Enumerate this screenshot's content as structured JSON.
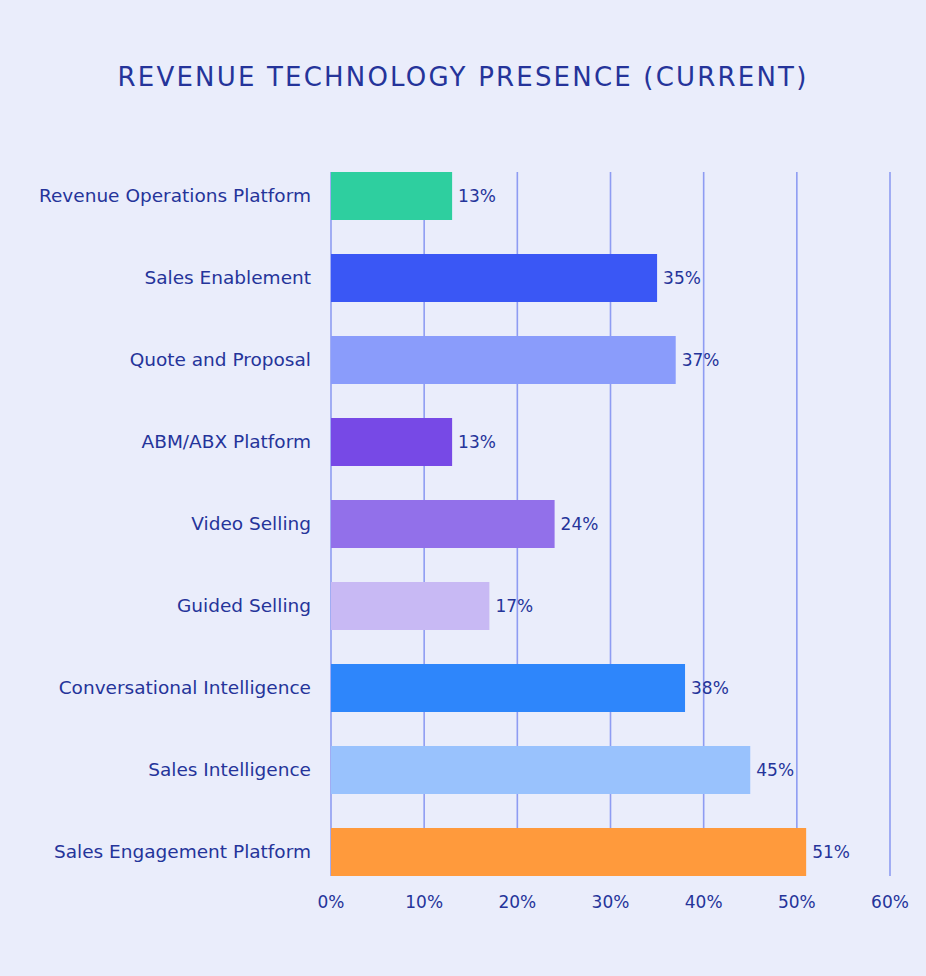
{
  "chart_data": {
    "type": "bar",
    "title": "REVENUE TECHNOLOGY PRESENCE (CURRENT)",
    "orientation": "horizontal",
    "categories": [
      "Revenue Operations Platform",
      "Sales Enablement",
      "Quote and Proposal",
      "ABM/ABX Platform",
      "Video Selling",
      "Guided Selling",
      "Conversational Intelligence",
      "Sales Intelligence",
      "Sales Engagement Platform"
    ],
    "values": [
      13,
      35,
      37,
      13,
      24,
      17,
      38,
      45,
      51
    ],
    "value_labels": [
      "13%",
      "35%",
      "37%",
      "13%",
      "24%",
      "17%",
      "38%",
      "45%",
      "51%"
    ],
    "colors": [
      "#2ecf9f",
      "#3a57f5",
      "#8a9cfb",
      "#7749e6",
      "#9270ea",
      "#c8b9f4",
      "#2e86fb",
      "#99c2fd",
      "#ff9a3c"
    ],
    "xlim": [
      0,
      60
    ],
    "xticks": [
      {
        "value": 0,
        "label": "0%"
      },
      {
        "value": 10,
        "label": "10%"
      },
      {
        "value": 20,
        "label": "20%"
      },
      {
        "value": 30,
        "label": "30%"
      },
      {
        "value": 40,
        "label": "40%"
      },
      {
        "value": 50,
        "label": "50%"
      },
      {
        "value": 60,
        "label": "60%"
      }
    ],
    "grid": true,
    "data_labels": true
  }
}
